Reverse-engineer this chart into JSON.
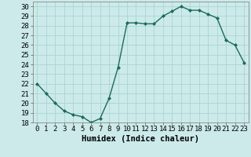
{
  "x": [
    0,
    1,
    2,
    3,
    4,
    5,
    6,
    7,
    8,
    9,
    10,
    11,
    12,
    13,
    14,
    15,
    16,
    17,
    18,
    19,
    20,
    21,
    22,
    23
  ],
  "y": [
    22,
    21,
    20,
    19.2,
    18.8,
    18.6,
    18.0,
    18.4,
    20.5,
    23.7,
    28.3,
    28.3,
    28.2,
    28.2,
    29.0,
    29.5,
    30.0,
    29.6,
    29.6,
    29.2,
    28.8,
    26.5,
    26.0,
    24.2
  ],
  "line_color": "#1a6b5a",
  "marker": "D",
  "marker_size": 2.0,
  "bg_color": "#cceaea",
  "grid_color": "#aad4d4",
  "xlabel": "Humidex (Indice chaleur)",
  "xlim": [
    -0.5,
    23.5
  ],
  "ylim": [
    18,
    30.5
  ],
  "yticks": [
    18,
    19,
    20,
    21,
    22,
    23,
    24,
    25,
    26,
    27,
    28,
    29,
    30
  ],
  "xticks": [
    0,
    1,
    2,
    3,
    4,
    5,
    6,
    7,
    8,
    9,
    10,
    11,
    12,
    13,
    14,
    15,
    16,
    17,
    18,
    19,
    20,
    21,
    22,
    23
  ],
  "xlabel_fontsize": 7.5,
  "tick_fontsize": 6.5,
  "line_width": 1.0
}
